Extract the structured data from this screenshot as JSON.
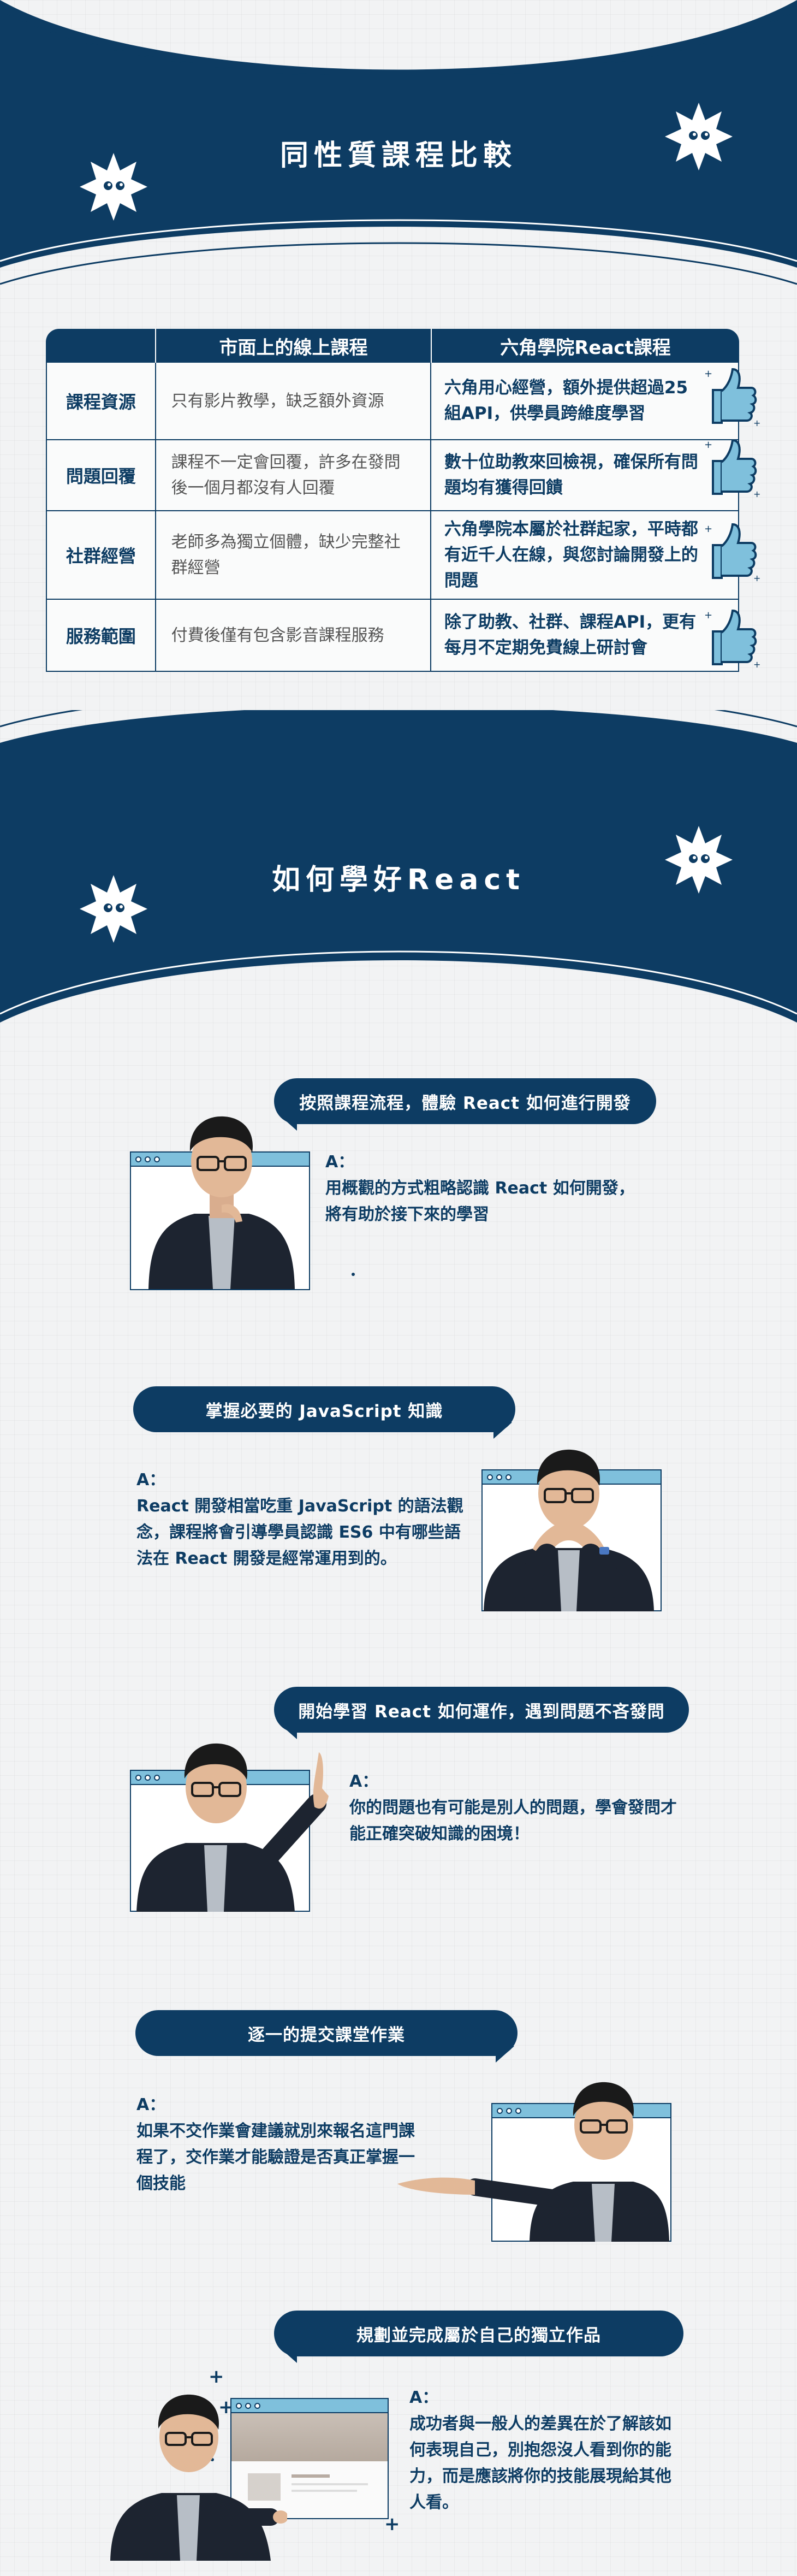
{
  "section_compare": {
    "title": "同性質課程比較",
    "headers": [
      "",
      "市面上的線上課程",
      "六角學院React課程"
    ],
    "rows": [
      {
        "label": "課程資源",
        "market": "只有影片教學，缺乏額外資源",
        "hexschool": "六角用心經營，額外提供超過25組API，供學員跨維度學習"
      },
      {
        "label": "問題回覆",
        "market": "課程不一定會回覆，許多在發問後一個月都沒有人回覆",
        "hexschool": "數十位助教來回檢視，確保所有問題均有獲得回饋"
      },
      {
        "label": "社群經營",
        "market": "老師多為獨立個體，缺少完整社群經營",
        "hexschool": "六角學院本屬於社群起家，平時都有近千人在線，與您討論開發上的問題"
      },
      {
        "label": "服務範圍",
        "market": "付費後僅有包含影音課程服務",
        "hexschool": "除了助教、社群、課程API，更有每月不定期免費線上研討會"
      }
    ]
  },
  "section_learn": {
    "title": "如何學好React",
    "steps": [
      {
        "question": "按照課程流程，體驗 React 如何進行開發",
        "answer_label": "A：",
        "answer": "用概觀的方式粗略認識 React 如何開發，將有助於接下來的學習"
      },
      {
        "question": "掌握必要的 JavaScript 知識",
        "answer_label": "A：",
        "answer": "React 開發相當吃重 JavaScript 的語法觀念，課程將會引導學員認識 ES6 中有哪些語法在 React 開發是經常運用到的。"
      },
      {
        "question": "開始學習 React 如何運作，遇到問題不吝發問",
        "answer_label": "A：",
        "answer": "你的問題也有可能是別人的問題，學會發問才能正確突破知識的困境！"
      },
      {
        "question": "逐一的提交課堂作業",
        "answer_label": "A：",
        "answer": "如果不交作業會建議就別來報名這門課程了，交作業才能驗證是否真正掌握一個技能"
      },
      {
        "question": "規劃並完成屬於自己的獨立作品",
        "answer_label": "A：",
        "answer": "成功者與一般人的差異在於了解該如何表現自己，別抱怨沒人看到你的能力，而是應該將你的技能展現給其他人看。"
      }
    ]
  },
  "colors": {
    "navy": "#0d3c63",
    "light_blue": "#7fc0dc",
    "background": "#f2f3f4",
    "muted_text": "#555555"
  }
}
